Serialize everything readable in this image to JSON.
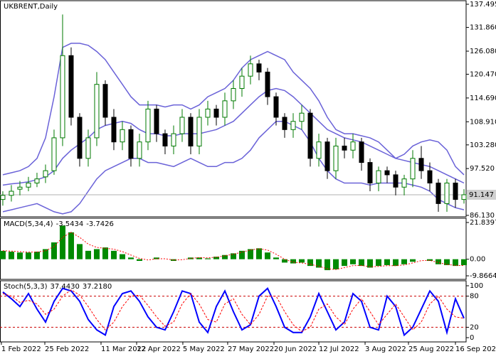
{
  "chart_data": [
    {
      "type": "candlestick",
      "title": "UKBRENT,Daily",
      "up_color": "#007a00",
      "down_color": "#000000",
      "open": [
        90,
        91,
        92.5,
        93,
        94,
        95.5,
        97,
        105,
        125,
        110,
        100,
        105,
        118,
        110,
        104,
        107,
        100,
        104,
        112,
        106,
        103,
        106,
        110,
        103,
        110,
        112,
        110,
        114,
        117,
        120,
        123,
        121,
        115,
        110,
        107,
        109,
        111,
        100,
        104,
        97,
        103,
        102,
        104,
        99,
        94,
        97,
        96,
        93,
        95,
        100,
        97,
        94,
        89,
        94,
        90
      ],
      "high": [
        92,
        93.5,
        94.5,
        95.5,
        96.5,
        98.5,
        107,
        135,
        127,
        111,
        107,
        121,
        119,
        112,
        109,
        108,
        106,
        114,
        113,
        107,
        108,
        112,
        111,
        112,
        114,
        113,
        116,
        119,
        122,
        125,
        124,
        122,
        116,
        111,
        111,
        113,
        112,
        106,
        105,
        105,
        105,
        106,
        105,
        100,
        98,
        98,
        97,
        96,
        102,
        103,
        99,
        95,
        95,
        95,
        92.5
      ],
      "low": [
        88.5,
        89.5,
        91,
        92,
        93,
        94,
        96,
        103,
        108,
        98,
        98,
        103,
        108,
        102,
        102,
        98,
        98,
        102,
        104,
        101,
        101,
        104,
        101,
        101,
        108,
        108,
        108,
        112,
        115,
        118,
        119,
        113,
        108,
        105,
        105,
        107,
        98,
        98,
        95,
        95,
        100,
        100,
        97,
        92,
        92,
        94,
        91,
        91,
        93,
        95,
        92,
        87,
        87,
        88,
        89
      ],
      "close": [
        91,
        92,
        93,
        94,
        95,
        97,
        105,
        125,
        110,
        100,
        105,
        118,
        110,
        104,
        107,
        100,
        104,
        112,
        106,
        103,
        106,
        110,
        103,
        110,
        112,
        110,
        114,
        117,
        120,
        123,
        121,
        115,
        110,
        107,
        109,
        111,
        100,
        104,
        97,
        103,
        102,
        104,
        99,
        94,
        97,
        96,
        93,
        95,
        100,
        97,
        94,
        89,
        94,
        90,
        91.147
      ],
      "bollinger": {
        "color": "#6a62d8",
        "upper": [
          96,
          96.5,
          97,
          98,
          100,
          105,
          115,
          127,
          128,
          128,
          127.5,
          126,
          124,
          121,
          118,
          115,
          113,
          113,
          113,
          112.5,
          113,
          113,
          112,
          113,
          115,
          116,
          117,
          119,
          122,
          124,
          125,
          126,
          125,
          124,
          121,
          119,
          117,
          114,
          110,
          107,
          106,
          106,
          105.5,
          105,
          104,
          102,
          100,
          101,
          103,
          104,
          104.5,
          104,
          102,
          98,
          96
        ],
        "middle": [
          93.5,
          93.8,
          94,
          94.3,
          94.8,
          95.5,
          97,
          100,
          102,
          103.5,
          105,
          107,
          108,
          108.5,
          109,
          108.5,
          107,
          106,
          106,
          105.5,
          105.5,
          106,
          106,
          106,
          106.5,
          107,
          108,
          109,
          111,
          113,
          115,
          116.5,
          117,
          116.5,
          115,
          113,
          111,
          109,
          107,
          106,
          105,
          104.5,
          104,
          103,
          102,
          101,
          100,
          99.5,
          99,
          98.5,
          98,
          97,
          96,
          95,
          94
        ],
        "lower": [
          87,
          87.5,
          88,
          88.5,
          89,
          88,
          87,
          86.5,
          87,
          89,
          92,
          95,
          97,
          98,
          99,
          100,
          100,
          99,
          99,
          98.5,
          98,
          99,
          100,
          99,
          98,
          98,
          99,
          99,
          100,
          102,
          105,
          107,
          109,
          109,
          108,
          107,
          104,
          100,
          97,
          95,
          94,
          94,
          94,
          93.5,
          94,
          94,
          94,
          94,
          93.5,
          93,
          92,
          90,
          89,
          88,
          87.5
        ]
      },
      "ylim": [
        85.78,
        138.36
      ],
      "yticks": [
        {
          "value": 137.495,
          "label": "137.495"
        },
        {
          "value": 131.86,
          "label": "131.860"
        },
        {
          "value": 126.08,
          "label": "126.080"
        },
        {
          "value": 120.47,
          "label": "120.470"
        },
        {
          "value": 114.69,
          "label": "114.690"
        },
        {
          "value": 108.91,
          "label": "108.910"
        },
        {
          "value": 103.28,
          "label": "103.280"
        },
        {
          "value": 97.52,
          "label": "97.520"
        },
        {
          "value": 86.13,
          "label": "86.130"
        }
      ]
    },
    {
      "type": "macd",
      "title": "MACD(5,34,4)",
      "series": [
        {
          "color": "#008a00",
          "values": [
            5,
            4.5,
            4,
            4,
            4.5,
            6,
            10,
            20,
            16,
            9,
            5,
            6,
            7,
            5,
            3,
            1,
            -1,
            0,
            1,
            0,
            -1,
            0,
            1,
            1,
            0.5,
            1.5,
            2.5,
            3.5,
            5,
            6,
            6.5,
            4,
            1,
            -2,
            -2.5,
            -2,
            -4,
            -5,
            -6.5,
            -6,
            -4,
            -3,
            -4,
            -5,
            -4,
            -3.5,
            -4,
            -3,
            -1.5,
            0,
            -1,
            -3,
            -3.5,
            -4,
            -3.5434
          ]
        },
        {
          "color": "#ff0000",
          "values": [
            5,
            4.8,
            4.5,
            4.2,
            4.3,
            5,
            7.5,
            13,
            16,
            13,
            9,
            7,
            6.5,
            6,
            4.5,
            2.5,
            0.5,
            -0.5,
            0.3,
            0.3,
            -0.5,
            -0.3,
            0.5,
            1,
            0.8,
            1.2,
            2,
            3,
            4.2,
            5.5,
            6.2,
            5.5,
            3,
            0,
            -1.8,
            -2.2,
            -3,
            -4.2,
            -5.7,
            -6.1,
            -5,
            -3.8,
            -3.7,
            -4.5,
            -4.3,
            -3.8,
            -3.8,
            -3.4,
            -2.2,
            -0.8,
            -0.7,
            -2,
            -3.1,
            -3.7,
            -3.7426
          ]
        }
      ],
      "ylim": [
        -11.98,
        24.38
      ],
      "yticks": [
        21.8397,
        {
          "value": 0,
          "label": "0.00"
        },
        -9.8664
      ]
    },
    {
      "type": "line",
      "title": "Stoch(5,3,3)",
      "series": [
        {
          "color": "#0000ff",
          "value_label": "37.4430",
          "values": [
            88,
            75,
            60,
            85,
            55,
            30,
            70,
            95,
            90,
            70,
            35,
            15,
            5,
            60,
            85,
            90,
            70,
            40,
            20,
            15,
            50,
            90,
            85,
            30,
            10,
            60,
            90,
            50,
            15,
            25,
            80,
            95,
            60,
            20,
            10,
            10,
            40,
            85,
            50,
            15,
            30,
            85,
            70,
            20,
            15,
            80,
            60,
            5,
            20,
            55,
            90,
            70,
            10,
            75,
            37.443
          ]
        },
        {
          "color": "#ff0000",
          "value_label": "37.2180",
          "values": [
            85,
            80,
            68,
            72,
            65,
            45,
            55,
            80,
            92,
            82,
            60,
            35,
            15,
            30,
            60,
            80,
            82,
            62,
            40,
            22,
            30,
            65,
            85,
            65,
            35,
            30,
            65,
            75,
            45,
            25,
            45,
            80,
            80,
            50,
            25,
            12,
            20,
            55,
            65,
            40,
            25,
            55,
            75,
            50,
            25,
            45,
            65,
            40,
            15,
            30,
            65,
            80,
            55,
            40,
            37.218
          ]
        }
      ],
      "levels": [
        80,
        20
      ],
      "level_color": "#cc0000",
      "ylim": [
        -8.2,
        109.6
      ],
      "yticks": [
        100,
        80,
        20,
        0
      ],
      "xlim": [
        -0.33,
        54.25
      ],
      "xticks": [
        {
          "value": -0.17,
          "label": "1 Feb 2022"
        },
        {
          "value": 4.92,
          "label": "25 Feb 2022"
        },
        {
          "value": 11.5,
          "label": "11 Mar 2022"
        },
        {
          "value": 15.67,
          "label": "12 Apr 2022"
        },
        {
          "value": 21.08,
          "label": "5 May 2022"
        },
        {
          "value": 26.33,
          "label": "27 May 2022"
        },
        {
          "value": 31.75,
          "label": "20 Jun 2022"
        },
        {
          "value": 37,
          "label": "12 Jul 2022"
        },
        {
          "value": 42.42,
          "label": "3 Aug 2022"
        },
        {
          "value": 47.5,
          "label": "25 Aug 2022"
        },
        {
          "value": 53,
          "label": "16 Sep 2022"
        }
      ]
    }
  ]
}
